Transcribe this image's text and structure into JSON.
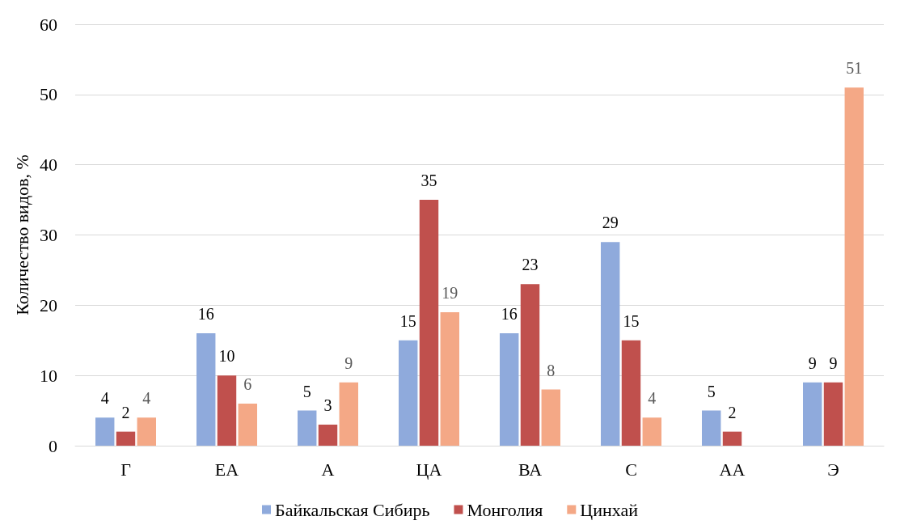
{
  "chart_data": {
    "type": "bar",
    "ylabel": "Количество видов, %",
    "categories": [
      "Г",
      "ЕА",
      "А",
      "ЦА",
      "ВА",
      "С",
      "АА",
      "Э"
    ],
    "series": [
      {
        "name": "Байкальская Сибирь",
        "color": "#8faadc",
        "values": [
          4,
          16,
          5,
          15,
          16,
          29,
          5,
          9
        ]
      },
      {
        "name": "Монголия",
        "color": "#c0504d",
        "values": [
          2,
          10,
          3,
          35,
          23,
          15,
          2,
          9
        ]
      },
      {
        "name": "Цинхай",
        "color": "#f4a886",
        "values": [
          4,
          6,
          9,
          19,
          8,
          4,
          null,
          51
        ]
      }
    ],
    "ylim": [
      0,
      60
    ],
    "yticks": [
      0,
      10,
      20,
      30,
      40,
      50,
      60
    ],
    "grid": "y",
    "legend": "bottom",
    "data_labels": true
  }
}
